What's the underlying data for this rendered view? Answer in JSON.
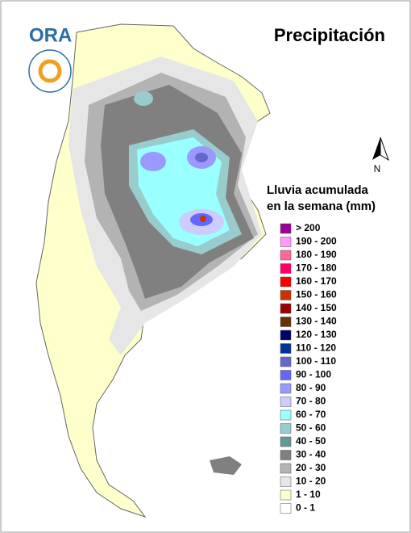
{
  "header": {
    "logo": "ORA",
    "title": "Precipitación"
  },
  "north": "N",
  "legend": {
    "title_lines": [
      "Lluvia acumulada",
      "en la semana (mm)"
    ],
    "items": [
      {
        "label": "> 200",
        "color": "#990099"
      },
      {
        "label": "190 - 200",
        "color": "#ff99ff"
      },
      {
        "label": "180 - 190",
        "color": "#ff6699"
      },
      {
        "label": "170 - 180",
        "color": "#ff0066"
      },
      {
        "label": "160 - 170",
        "color": "#ff0000"
      },
      {
        "label": "150 - 160",
        "color": "#cc3300"
      },
      {
        "label": "140 - 150",
        "color": "#990000"
      },
      {
        "label": "130 - 140",
        "color": "#663300"
      },
      {
        "label": "120 - 130",
        "color": "#000066"
      },
      {
        "label": "110 - 120",
        "color": "#003399"
      },
      {
        "label": "100 - 110",
        "color": "#6666cc"
      },
      {
        "label": "90 - 100",
        "color": "#6666ff"
      },
      {
        "label": "80 - 90",
        "color": "#9999ff"
      },
      {
        "label": "70 - 80",
        "color": "#ccccff"
      },
      {
        "label": "60 - 70",
        "color": "#99ffff"
      },
      {
        "label": "50 - 60",
        "color": "#99cccc"
      },
      {
        "label": "40 - 50",
        "color": "#669999"
      },
      {
        "label": "30 - 40",
        "color": "#808080"
      },
      {
        "label": "20 - 30",
        "color": "#b3b3b3"
      },
      {
        "label": "10 - 20",
        "color": "#e6e6e6"
      },
      {
        "label": "1 - 10",
        "color": "#ffffcc"
      },
      {
        "label": "0 - 1",
        "color": "#ffffff"
      }
    ]
  }
}
